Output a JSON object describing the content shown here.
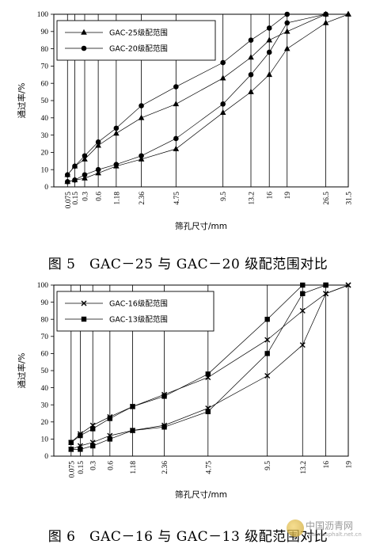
{
  "chart_data": [
    {
      "type": "line",
      "caption": "图 5　GAC－25 与 GAC－20 级配范围对比",
      "xlabel": "筛孔尺寸/mm",
      "ylabel": "通过率/%",
      "ylim": [
        0,
        100
      ],
      "x_ticks": [
        "0.075",
        "0.15",
        "0.3",
        "0.6",
        "1.18",
        "2.36",
        "4.75",
        "9.5",
        "13.2",
        "16",
        "19",
        "26.5",
        "31.5"
      ],
      "y_ticks": [
        0,
        10,
        20,
        30,
        40,
        50,
        60,
        70,
        80,
        90,
        100
      ],
      "legend_position": "top-left",
      "series": [
        {
          "name": "GAC-25级配范围",
          "marker": "triangle",
          "bound": "upper",
          "x": [
            "0.075",
            "0.15",
            "0.3",
            "0.6",
            "1.18",
            "2.36",
            "4.75",
            "9.5",
            "13.2",
            "16",
            "19",
            "26.5",
            "31.5"
          ],
          "y": [
            7,
            12,
            16,
            24,
            31,
            40,
            48,
            63,
            75,
            85,
            90,
            100,
            100
          ]
        },
        {
          "name": "",
          "marker": "triangle",
          "bound": "lower",
          "x": [
            "0.075",
            "0.15",
            "0.3",
            "0.6",
            "1.18",
            "2.36",
            "4.75",
            "9.5",
            "13.2",
            "16",
            "19",
            "26.5",
            "31.5"
          ],
          "y": [
            3,
            4,
            5,
            8,
            12,
            16,
            22,
            43,
            55,
            65,
            80,
            95,
            100
          ]
        },
        {
          "name": "GAC-20级配范围",
          "marker": "circle",
          "bound": "upper",
          "x": [
            "0.075",
            "0.15",
            "0.3",
            "0.6",
            "1.18",
            "2.36",
            "4.75",
            "9.5",
            "13.2",
            "16",
            "19",
            "26.5"
          ],
          "y": [
            7,
            12,
            18,
            26,
            34,
            47,
            58,
            72,
            85,
            92,
            100,
            100
          ]
        },
        {
          "name": "",
          "marker": "circle",
          "bound": "lower",
          "x": [
            "0.075",
            "0.15",
            "0.3",
            "0.6",
            "1.18",
            "2.36",
            "4.75",
            "9.5",
            "13.2",
            "16",
            "19",
            "26.5"
          ],
          "y": [
            3,
            4,
            7,
            10,
            13,
            18,
            28,
            48,
            65,
            78,
            95,
            100
          ]
        }
      ]
    },
    {
      "type": "line",
      "caption": "图 6　GAC－16 与 GAC－13 级配范围对比",
      "xlabel": "筛孔尺寸/mm",
      "ylabel": "通过率/%",
      "ylim": [
        0,
        100
      ],
      "x_ticks": [
        "0.075",
        "0.15",
        "0.3",
        "0.6",
        "1.18",
        "2.36",
        "4.75",
        "9.5",
        "13.2",
        "16",
        "19"
      ],
      "y_ticks": [
        0,
        10,
        20,
        30,
        40,
        50,
        60,
        70,
        80,
        90,
        100
      ],
      "legend_position": "top-left",
      "series": [
        {
          "name": "GAC-16级配范围",
          "marker": "x",
          "bound": "upper",
          "x": [
            "0.075",
            "0.15",
            "0.3",
            "0.6",
            "1.18",
            "2.36",
            "4.75",
            "9.5",
            "13.2",
            "16",
            "19"
          ],
          "y": [
            8,
            13,
            18,
            23,
            29,
            36,
            46,
            68,
            85,
            95,
            100
          ]
        },
        {
          "name": "",
          "marker": "x",
          "bound": "lower",
          "x": [
            "0.075",
            "0.15",
            "0.3",
            "0.6",
            "1.18",
            "2.36",
            "4.75",
            "9.5",
            "13.2",
            "16",
            "19"
          ],
          "y": [
            4,
            6,
            8,
            12,
            15,
            18,
            28,
            47,
            65,
            95,
            100
          ]
        },
        {
          "name": "GAC-13级配范围",
          "marker": "square",
          "bound": "upper",
          "x": [
            "0.075",
            "0.15",
            "0.3",
            "0.6",
            "1.18",
            "2.36",
            "4.75",
            "9.5",
            "13.2",
            "16"
          ],
          "y": [
            8,
            12,
            16,
            22,
            29,
            35,
            48,
            80,
            100,
            100
          ]
        },
        {
          "name": "",
          "marker": "square",
          "bound": "lower",
          "x": [
            "0.075",
            "0.15",
            "0.3",
            "0.6",
            "1.18",
            "2.36",
            "4.75",
            "9.5",
            "13.2",
            "16"
          ],
          "y": [
            4,
            4,
            6,
            10,
            15,
            17,
            26,
            60,
            95,
            100
          ]
        }
      ]
    }
  ],
  "captions": {
    "fig5": "图 5　GAC－25 与 GAC－20 级配范围对比",
    "fig6": "图 6　GAC－16 与 GAC－13 级配范围对比"
  },
  "watermark": {
    "text": "中国沥青网",
    "url": "www.asphalt.net.cn"
  }
}
